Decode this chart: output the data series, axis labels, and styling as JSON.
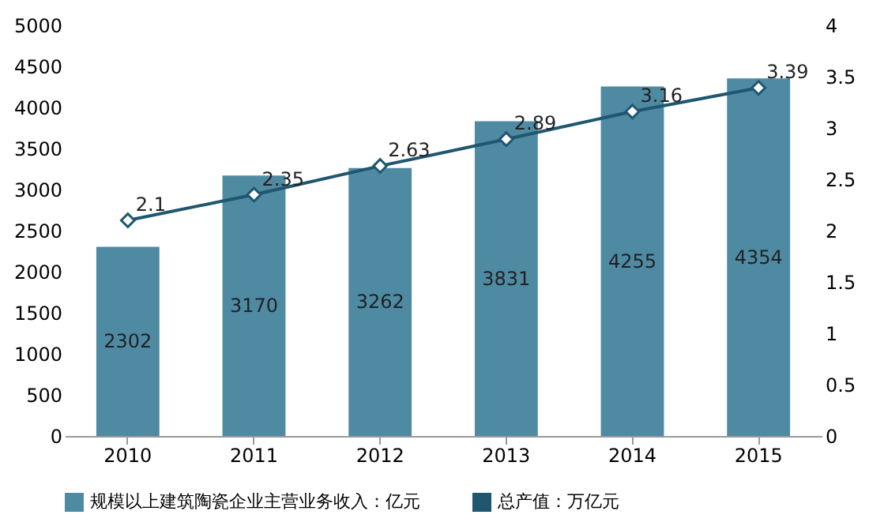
{
  "chart_data": {
    "type": "bar",
    "categories": [
      "2010",
      "2011",
      "2012",
      "2013",
      "2014",
      "2015"
    ],
    "series": [
      {
        "name": "规模以上建筑陶瓷企业主营业务收入：亿元",
        "color": "#4f8aa3",
        "values": [
          2302,
          3170,
          3262,
          3831,
          4255,
          4354
        ]
      },
      {
        "name": "总产值：万亿元",
        "type": "line",
        "axis": "y2",
        "color": "#1f5670",
        "values": [
          2.1,
          2.35,
          2.63,
          2.89,
          3.16,
          3.39
        ]
      }
    ],
    "ylim": [
      0,
      5000
    ],
    "yticks": [
      0,
      500,
      1000,
      1500,
      2000,
      2500,
      3000,
      3500,
      4000,
      4500,
      5000
    ],
    "y2lim": [
      0,
      4
    ],
    "y2ticks": [
      0,
      0.5,
      1,
      1.5,
      2,
      2.5,
      3,
      3.5,
      4
    ],
    "data_labels": true,
    "legend": "bottom",
    "marker": "diamond",
    "grid": false
  }
}
